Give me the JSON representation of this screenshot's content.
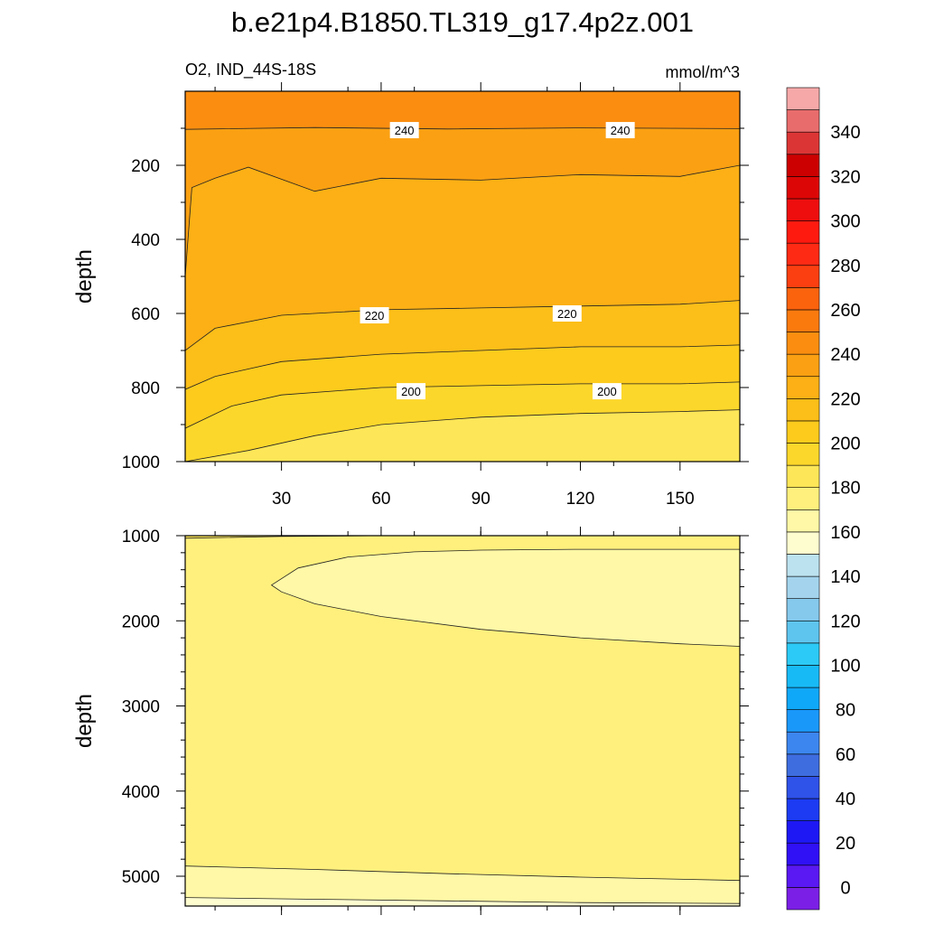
{
  "chart_data": [
    {
      "type": "contour",
      "panel": "upper",
      "title": "b.e21p4.B1850.TL319_g17.4p2z.001",
      "subtitle_left": "O2, IND_44S-18S",
      "subtitle_right": "mmol/m^3",
      "xlabel": "",
      "ylabel": "depth",
      "xlim": [
        1,
        168
      ],
      "ylim": [
        1000,
        0
      ],
      "xticks": [
        30,
        60,
        90,
        120,
        150
      ],
      "xtick_labels": [
        "30",
        "60",
        "90",
        "120",
        "150"
      ],
      "yticks": [
        200,
        400,
        600,
        800,
        1000
      ],
      "ytick_labels": [
        "200",
        "400",
        "600",
        "800",
        "1000"
      ],
      "contour_labels": [
        {
          "text": "240",
          "x": 67,
          "depth": 105
        },
        {
          "text": "240",
          "x": 132,
          "depth": 105
        },
        {
          "text": "220",
          "x": 58,
          "depth": 605
        },
        {
          "text": "220",
          "x": 116,
          "depth": 600
        },
        {
          "text": "200",
          "x": 69,
          "depth": 810
        },
        {
          "text": "200",
          "x": 128,
          "depth": 810
        }
      ],
      "contour_levels": [
        250,
        240,
        230,
        220,
        210,
        200,
        190,
        180
      ],
      "contours": [
        {
          "level": 240,
          "x": [
            1,
            40,
            80,
            120,
            168
          ],
          "depth": [
            103,
            98,
            102,
            99,
            101
          ]
        },
        {
          "level": 230,
          "x": [
            1,
            3,
            10,
            20,
            40,
            60,
            90,
            120,
            150,
            168
          ],
          "depth": [
            500,
            260,
            235,
            205,
            270,
            235,
            240,
            225,
            230,
            200
          ]
        },
        {
          "level": 220,
          "x": [
            1,
            10,
            30,
            60,
            90,
            120,
            150,
            168
          ],
          "depth": [
            700,
            640,
            605,
            590,
            585,
            580,
            575,
            565
          ]
        },
        {
          "level": 210,
          "x": [
            1,
            10,
            30,
            60,
            90,
            120,
            150,
            168
          ],
          "depth": [
            805,
            770,
            730,
            710,
            700,
            690,
            690,
            685
          ]
        },
        {
          "level": 200,
          "x": [
            1,
            15,
            30,
            60,
            90,
            120,
            150,
            168
          ],
          "depth": [
            910,
            850,
            820,
            800,
            795,
            790,
            790,
            785
          ]
        },
        {
          "level": 190,
          "x": [
            1,
            20,
            40,
            60,
            90,
            120,
            150,
            168
          ],
          "depth": [
            1000,
            970,
            930,
            900,
            880,
            870,
            865,
            860
          ]
        }
      ],
      "max_value_region": "above 240 (surface to ~100 m)"
    },
    {
      "type": "contour",
      "panel": "lower",
      "xlabel": "",
      "ylabel": "depth",
      "xlim": [
        1,
        168
      ],
      "ylim": [
        5350,
        1000
      ],
      "yticks": [
        1000,
        2000,
        3000,
        4000,
        5000
      ],
      "ytick_labels": [
        "1000",
        "2000",
        "3000",
        "4000",
        "5000"
      ],
      "contours": [
        {
          "level": 180,
          "x": [
            1,
            30,
            60,
            90,
            120,
            168
          ],
          "depth": [
            1030,
            1010,
            1000,
            1000,
            1000,
            1000
          ]
        },
        {
          "level": 170,
          "note": "tongue of water below 170 from x~27 to edge",
          "x": [
            27,
            35,
            50,
            70,
            90,
            120,
            150,
            168,
            168,
            150,
            120,
            90,
            60,
            40,
            30
          ],
          "depth": [
            1580,
            1380,
            1250,
            1190,
            1170,
            1160,
            1160,
            1160,
            2300,
            2270,
            2200,
            2100,
            1950,
            1800,
            1660
          ]
        },
        {
          "level": 170,
          "note": "bottom layer",
          "x": [
            1,
            40,
            80,
            120,
            168
          ],
          "depth": [
            4880,
            4920,
            4970,
            5010,
            5050
          ]
        },
        {
          "level": 160,
          "x": [
            1,
            40,
            80,
            120,
            168
          ],
          "depth": [
            5250,
            5270,
            5290,
            5310,
            5320
          ]
        }
      ]
    }
  ],
  "colorbar": {
    "tick_labels": [
      "0",
      "20",
      "40",
      "60",
      "80",
      "100",
      "120",
      "140",
      "160",
      "180",
      "200",
      "220",
      "240",
      "260",
      "280",
      "300",
      "320",
      "340"
    ],
    "boundaries_min": -5,
    "boundary_step": 10,
    "colors": [
      "#7b1fe6",
      "#5a18f2",
      "#3010f5",
      "#1d18f4",
      "#1c3bf2",
      "#2f52e9",
      "#3e6de0",
      "#3c86ef",
      "#1a98fa",
      "#0fa8f8",
      "#18baf6",
      "#2ccaf6",
      "#5ec5ef",
      "#85c9ec",
      "#a4d4ed",
      "#bce2ef",
      "#fefdd0",
      "#fff8a6",
      "#fff07d",
      "#fde657",
      "#fcd72b",
      "#fccb1c",
      "#fcbe18",
      "#fcb015",
      "#fba012",
      "#fb8e10",
      "#fb7a0e",
      "#fb630d",
      "#fb3f10",
      "#ff2a14",
      "#ff1a0f",
      "#ee0e0e",
      "#dd0606",
      "#cc0000",
      "#dc3535",
      "#e86c6c",
      "#f6a8a8"
    ]
  }
}
